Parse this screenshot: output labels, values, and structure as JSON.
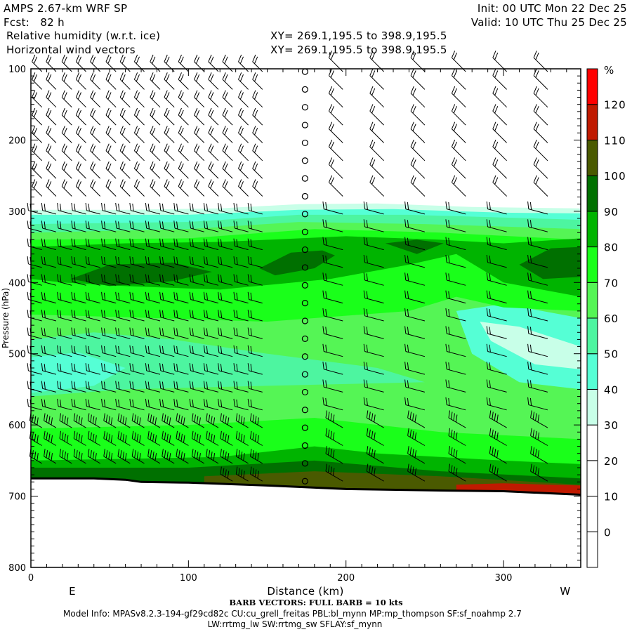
{
  "header": {
    "model": "AMPS 2.67-km WRF SP",
    "init": "Init: 00 UTC Mon 22 Dec 25",
    "fcst": "Fcst:   82 h",
    "valid": "Valid: 10 UTC Thu 25 Dec 25",
    "field1": "Relative humidity (w.r.t. ice)",
    "field1_xy": "XY= 269.1,195.5 to 398.9,195.5",
    "field2": "Horizontal wind vectors",
    "field2_xy": "XY= 269.1,195.5 to 398.9,195.5"
  },
  "footer": {
    "barb_note": "BARB VECTORS:  FULL BARB = 10 kts",
    "model_info": "Model Info: MPASv8.2.3-194-gf29cd82c CU:cu_grell_freitas PBL:bl_mynn MP:mp_thompson SF:sf_noahmp 2.7",
    "model_info2": "LW:rrtmg_lw SW:rrtmg_sw SFLAY:sf_mynn"
  },
  "chart_data": {
    "type": "contour-cross-section",
    "title": "Relative humidity (w.r.t. ice) and horizontal wind vectors",
    "xlabel": "Distance (km)",
    "x_end_labels": {
      "left": "E",
      "right": "W"
    },
    "xlim": [
      0,
      349
    ],
    "xticks": [
      0,
      100,
      200,
      300
    ],
    "xtick_labels": [
      "0",
      "100",
      "200",
      "300"
    ],
    "ylabel": "Pressure (hPa)",
    "ylim": [
      100,
      800
    ],
    "y_inverted": true,
    "yticks": [
      100,
      200,
      300,
      400,
      500,
      600,
      700,
      800
    ],
    "ytick_labels": [
      "100",
      "200",
      "300",
      "400",
      "500",
      "600",
      "700",
      "800"
    ],
    "colorbar": {
      "unit": "%",
      "labels": [
        "120",
        "110",
        "100",
        "90",
        "80",
        "70",
        "60",
        "50",
        "40",
        "30",
        "20",
        "10",
        "0"
      ],
      "label_values": [
        120,
        110,
        100,
        90,
        80,
        70,
        60,
        50,
        40,
        30,
        20,
        10,
        0
      ],
      "bins": [
        -10,
        0,
        10,
        20,
        30,
        40,
        50,
        60,
        70,
        80,
        90,
        100,
        110,
        120,
        130
      ],
      "colors": [
        "#ffffff",
        "#ffffff",
        "#ffffff",
        "#ffffff",
        "#c8ffe8",
        "#55ffd5",
        "#4df5a0",
        "#55f555",
        "#1aff1a",
        "#00b400",
        "#007000",
        "#4a5a00",
        "#c01a00",
        "#ff0000"
      ]
    },
    "rh_regions": [
      {
        "level": 30,
        "color": "#c8ffe8",
        "top": [
          [
            0,
            298
          ],
          [
            60,
            298
          ],
          [
            120,
            296
          ],
          [
            170,
            290
          ],
          [
            220,
            289
          ],
          [
            280,
            294
          ],
          [
            349,
            296
          ]
        ]
      },
      {
        "level": 40,
        "color": "#55ffd5",
        "top": [
          [
            0,
            305
          ],
          [
            100,
            305
          ],
          [
            170,
            298
          ],
          [
            230,
            297
          ],
          [
            300,
            302
          ],
          [
            349,
            303
          ]
        ]
      },
      {
        "level": 50,
        "color": "#4df5a0",
        "top": [
          [
            0,
            318
          ],
          [
            100,
            315
          ],
          [
            170,
            305
          ],
          [
            240,
            305
          ],
          [
            349,
            312
          ]
        ]
      },
      {
        "level": 60,
        "color": "#55f555",
        "top": [
          [
            0,
            330
          ],
          [
            100,
            325
          ],
          [
            170,
            315
          ],
          [
            250,
            318
          ],
          [
            349,
            325
          ]
        ]
      },
      {
        "level": 50,
        "color": "#4df5a0",
        "poly": [
          [
            0,
            480
          ],
          [
            40,
            470
          ],
          [
            90,
            480
          ],
          [
            150,
            500
          ],
          [
            220,
            520
          ],
          [
            250,
            540
          ],
          [
            150,
            545
          ],
          [
            60,
            550
          ],
          [
            0,
            560
          ]
        ]
      },
      {
        "level": 40,
        "color": "#55ffd5",
        "poly": [
          [
            0,
            505
          ],
          [
            30,
            498
          ],
          [
            60,
            520
          ],
          [
            40,
            545
          ],
          [
            0,
            555
          ]
        ]
      },
      {
        "level": 40,
        "color": "#55ffd5",
        "poly": [
          [
            270,
            440
          ],
          [
            300,
            430
          ],
          [
            349,
            450
          ],
          [
            349,
            550
          ],
          [
            310,
            540
          ],
          [
            280,
            500
          ]
        ]
      },
      {
        "level": 30,
        "color": "#c8ffe8",
        "poly": [
          [
            285,
            455
          ],
          [
            310,
            462
          ],
          [
            349,
            490
          ],
          [
            349,
            522
          ],
          [
            320,
            515
          ],
          [
            292,
            482
          ]
        ]
      },
      {
        "level": 70,
        "color": "#1aff1a",
        "poly": [
          [
            0,
            340
          ],
          [
            100,
            338
          ],
          [
            180,
            325
          ],
          [
            260,
            330
          ],
          [
            349,
            340
          ],
          [
            349,
            440
          ],
          [
            300,
            435
          ],
          [
            270,
            420
          ],
          [
            240,
            440
          ],
          [
            150,
            455
          ],
          [
            80,
            450
          ],
          [
            0,
            445
          ]
        ]
      },
      {
        "level": 70,
        "color": "#1aff1a",
        "poly": [
          [
            0,
            605
          ],
          [
            100,
            600
          ],
          [
            180,
            590
          ],
          [
            260,
            610
          ],
          [
            349,
            620
          ],
          [
            349,
            700
          ],
          [
            0,
            700
          ]
        ]
      },
      {
        "level": 80,
        "color": "#00b400",
        "poly": [
          [
            0,
            350
          ],
          [
            60,
            345
          ],
          [
            120,
            343
          ],
          [
            200,
            335
          ],
          [
            260,
            340
          ],
          [
            300,
            345
          ],
          [
            349,
            338
          ],
          [
            349,
            420
          ],
          [
            300,
            400
          ],
          [
            270,
            360
          ],
          [
            240,
            375
          ],
          [
            190,
            395
          ],
          [
            120,
            410
          ],
          [
            60,
            405
          ],
          [
            20,
            400
          ],
          [
            0,
            395
          ]
        ]
      },
      {
        "level": 80,
        "color": "#00b400",
        "poly": [
          [
            0,
            650
          ],
          [
            120,
            645
          ],
          [
            180,
            630
          ],
          [
            220,
            640
          ],
          [
            300,
            650
          ],
          [
            349,
            655
          ],
          [
            349,
            700
          ],
          [
            0,
            700
          ]
        ]
      },
      {
        "level": 90,
        "color": "#007000",
        "poly": [
          [
            25,
            395
          ],
          [
            50,
            375
          ],
          [
            90,
            372
          ],
          [
            115,
            385
          ],
          [
            90,
            398
          ],
          [
            50,
            405
          ]
        ]
      },
      {
        "level": 90,
        "color": "#007000",
        "poly": [
          [
            145,
            380
          ],
          [
            165,
            358
          ],
          [
            185,
            355
          ],
          [
            193,
            362
          ],
          [
            180,
            380
          ],
          [
            155,
            390
          ]
        ]
      },
      {
        "level": 90,
        "color": "#007000",
        "poly": [
          [
            225,
            345
          ],
          [
            245,
            340
          ],
          [
            262,
            345
          ],
          [
            245,
            360
          ]
        ]
      },
      {
        "level": 90,
        "color": "#007000",
        "poly": [
          [
            310,
            375
          ],
          [
            330,
            352
          ],
          [
            349,
            350
          ],
          [
            349,
            392
          ],
          [
            325,
            395
          ]
        ]
      },
      {
        "level": 90,
        "color": "#007000",
        "poly": [
          [
            0,
            660
          ],
          [
            100,
            660
          ],
          [
            180,
            650
          ],
          [
            260,
            665
          ],
          [
            349,
            675
          ],
          [
            349,
            700
          ],
          [
            0,
            700
          ]
        ]
      },
      {
        "level": 100,
        "color": "#4a5a00",
        "poly": [
          [
            110,
            672
          ],
          [
            180,
            665
          ],
          [
            260,
            672
          ],
          [
            349,
            684
          ],
          [
            349,
            700
          ],
          [
            110,
            700
          ]
        ]
      },
      {
        "level": 110,
        "color": "#c01a00",
        "poly": [
          [
            270,
            684
          ],
          [
            300,
            682
          ],
          [
            349,
            685
          ],
          [
            349,
            700
          ],
          [
            270,
            700
          ]
        ]
      }
    ],
    "surface_pressure": [
      [
        0,
        675
      ],
      [
        40,
        675
      ],
      [
        60,
        677
      ],
      [
        70,
        680
      ],
      [
        100,
        681
      ],
      [
        150,
        685
      ],
      [
        200,
        690
      ],
      [
        260,
        692
      ],
      [
        300,
        693
      ],
      [
        349,
        698
      ]
    ],
    "wind_barbs": {
      "columns_km": [
        7,
        16,
        26,
        35,
        44,
        54,
        63,
        72,
        82,
        91,
        100,
        110,
        119,
        128,
        138,
        147,
        174,
        198,
        224,
        250,
        276,
        302,
        328
      ],
      "calm_column_km": 174,
      "level_step_hPa": 25,
      "top_hPa": 100,
      "profile": [
        {
          "from_hPa": 100,
          "to_hPa": 300,
          "dir_deg": 315,
          "speed_kts": 20
        },
        {
          "from_hPa": 300,
          "to_hPa": 600,
          "dir_deg": 285,
          "speed_kts": 20
        },
        {
          "from_hPa": 600,
          "to_hPa": 720,
          "dir_deg": 300,
          "speed_kts": 40
        }
      ]
    }
  }
}
